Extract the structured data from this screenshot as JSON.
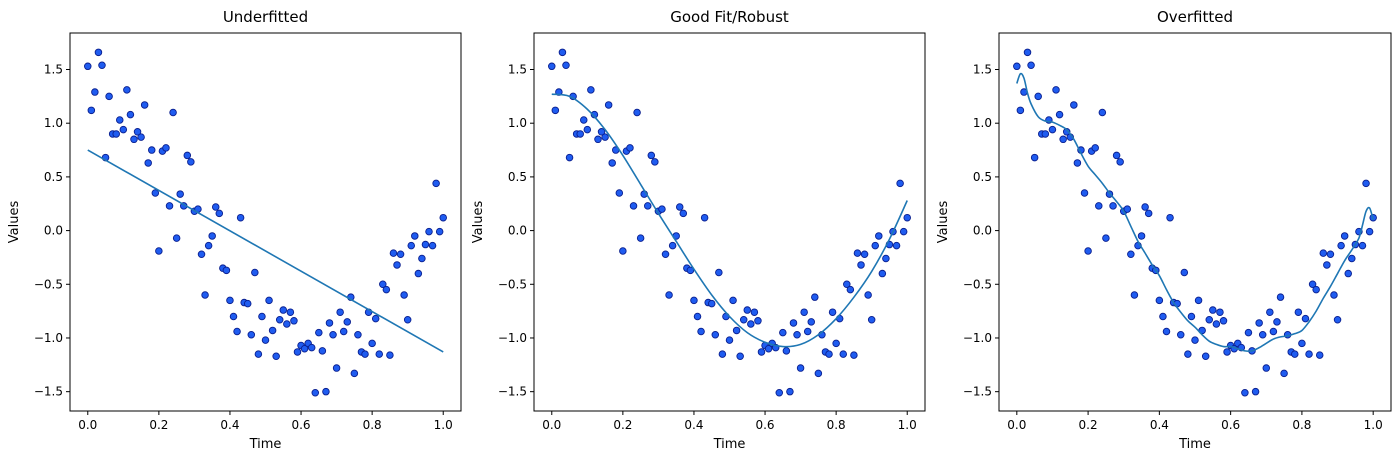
{
  "chart_data": [
    {
      "type": "scatter",
      "title": "Underfitted",
      "xlabel": "Time",
      "ylabel": "Values",
      "xlim": [
        -0.05,
        1.05
      ],
      "ylim": [
        -1.68,
        1.84
      ],
      "xticks": [
        0.0,
        0.2,
        0.4,
        0.6,
        0.8,
        1.0
      ],
      "xtick_labels": [
        "0.0",
        "0.2",
        "0.4",
        "0.6",
        "0.8",
        "1.0"
      ],
      "yticks": [
        -1.5,
        -1.0,
        -0.5,
        0.0,
        0.5,
        1.0,
        1.5
      ],
      "ytick_labels": [
        "−1.5",
        "−1.0",
        "−0.5",
        "0.0",
        "0.5",
        "1.0",
        "1.5"
      ],
      "grid": false,
      "series": [
        {
          "kind": "scatter",
          "x": [
            0.0,
            0.01,
            0.02,
            0.03,
            0.04,
            0.05,
            0.06,
            0.07,
            0.08,
            0.09,
            0.1,
            0.11,
            0.12,
            0.13,
            0.14,
            0.15,
            0.16,
            0.17,
            0.18,
            0.19,
            0.2,
            0.21,
            0.22,
            0.23,
            0.24,
            0.25,
            0.26,
            0.27,
            0.28,
            0.29,
            0.3,
            0.31,
            0.32,
            0.33,
            0.34,
            0.35,
            0.36,
            0.37,
            0.38,
            0.39,
            0.4,
            0.41,
            0.42,
            0.43,
            0.44,
            0.45,
            0.46,
            0.47,
            0.48,
            0.49,
            0.5,
            0.51,
            0.52,
            0.53,
            0.54,
            0.55,
            0.56,
            0.57,
            0.58,
            0.59,
            0.6,
            0.61,
            0.62,
            0.63,
            0.64,
            0.65,
            0.66,
            0.67,
            0.68,
            0.69,
            0.7,
            0.71,
            0.72,
            0.73,
            0.74,
            0.75,
            0.76,
            0.77,
            0.78,
            0.79,
            0.8,
            0.81,
            0.82,
            0.83,
            0.84,
            0.85,
            0.86,
            0.87,
            0.88,
            0.89,
            0.9,
            0.91,
            0.92,
            0.93,
            0.94,
            0.95,
            0.96,
            0.97,
            0.98,
            0.99,
            1.0
          ],
          "y": [
            1.53,
            1.12,
            1.29,
            1.66,
            1.54,
            0.68,
            1.25,
            0.9,
            0.9,
            1.03,
            0.94,
            1.31,
            1.08,
            0.85,
            0.92,
            0.87,
            1.17,
            0.63,
            0.75,
            0.35,
            -0.19,
            0.74,
            0.77,
            0.23,
            1.1,
            -0.07,
            0.34,
            0.23,
            0.7,
            0.64,
            0.18,
            0.2,
            -0.22,
            -0.6,
            -0.14,
            -0.05,
            0.22,
            0.16,
            -0.35,
            -0.37,
            -0.65,
            -0.8,
            -0.94,
            0.12,
            -0.67,
            -0.68,
            -0.97,
            -0.39,
            -1.15,
            -0.8,
            -1.02,
            -0.65,
            -0.93,
            -1.17,
            -0.83,
            -0.74,
            -0.87,
            -0.76,
            -0.84,
            -1.13,
            -1.07,
            -1.1,
            -1.05,
            -1.09,
            -1.51,
            -0.95,
            -1.12,
            -1.5,
            -0.86,
            -0.97,
            -1.28,
            -0.76,
            -0.94,
            -0.85,
            -0.62,
            -1.33,
            -0.97,
            -1.13,
            -1.15,
            -0.76,
            -1.05,
            -0.82,
            -1.15,
            -0.5,
            -0.55,
            -1.16,
            -0.21,
            -0.32,
            -0.22,
            -0.6,
            -0.83,
            -0.14,
            -0.05,
            -0.4,
            -0.26,
            -0.13,
            -0.01,
            -0.14,
            0.44,
            -0.01,
            0.12
          ]
        },
        {
          "kind": "line",
          "x": [
            0.0,
            1.0
          ],
          "y": [
            0.75,
            -1.13
          ]
        }
      ]
    },
    {
      "type": "scatter",
      "title": "Good Fit/Robust",
      "xlabel": "Time",
      "ylabel": "Values",
      "xlim": [
        -0.05,
        1.05
      ],
      "ylim": [
        -1.68,
        1.84
      ],
      "xticks": [
        0.0,
        0.2,
        0.4,
        0.6,
        0.8,
        1.0
      ],
      "xtick_labels": [
        "0.0",
        "0.2",
        "0.4",
        "0.6",
        "0.8",
        "1.0"
      ],
      "yticks": [
        -1.5,
        -1.0,
        -0.5,
        0.0,
        0.5,
        1.0,
        1.5
      ],
      "ytick_labels": [
        "−1.5",
        "−1.0",
        "−0.5",
        "0.0",
        "0.5",
        "1.0",
        "1.5"
      ],
      "grid": false,
      "series": [
        {
          "kind": "scatter",
          "x": [
            0.0,
            0.01,
            0.02,
            0.03,
            0.04,
            0.05,
            0.06,
            0.07,
            0.08,
            0.09,
            0.1,
            0.11,
            0.12,
            0.13,
            0.14,
            0.15,
            0.16,
            0.17,
            0.18,
            0.19,
            0.2,
            0.21,
            0.22,
            0.23,
            0.24,
            0.25,
            0.26,
            0.27,
            0.28,
            0.29,
            0.3,
            0.31,
            0.32,
            0.33,
            0.34,
            0.35,
            0.36,
            0.37,
            0.38,
            0.39,
            0.4,
            0.41,
            0.42,
            0.43,
            0.44,
            0.45,
            0.46,
            0.47,
            0.48,
            0.49,
            0.5,
            0.51,
            0.52,
            0.53,
            0.54,
            0.55,
            0.56,
            0.57,
            0.58,
            0.59,
            0.6,
            0.61,
            0.62,
            0.63,
            0.64,
            0.65,
            0.66,
            0.67,
            0.68,
            0.69,
            0.7,
            0.71,
            0.72,
            0.73,
            0.74,
            0.75,
            0.76,
            0.77,
            0.78,
            0.79,
            0.8,
            0.81,
            0.82,
            0.83,
            0.84,
            0.85,
            0.86,
            0.87,
            0.88,
            0.89,
            0.9,
            0.91,
            0.92,
            0.93,
            0.94,
            0.95,
            0.96,
            0.97,
            0.98,
            0.99,
            1.0
          ],
          "y": [
            1.53,
            1.12,
            1.29,
            1.66,
            1.54,
            0.68,
            1.25,
            0.9,
            0.9,
            1.03,
            0.94,
            1.31,
            1.08,
            0.85,
            0.92,
            0.87,
            1.17,
            0.63,
            0.75,
            0.35,
            -0.19,
            0.74,
            0.77,
            0.23,
            1.1,
            -0.07,
            0.34,
            0.23,
            0.7,
            0.64,
            0.18,
            0.2,
            -0.22,
            -0.6,
            -0.14,
            -0.05,
            0.22,
            0.16,
            -0.35,
            -0.37,
            -0.65,
            -0.8,
            -0.94,
            0.12,
            -0.67,
            -0.68,
            -0.97,
            -0.39,
            -1.15,
            -0.8,
            -1.02,
            -0.65,
            -0.93,
            -1.17,
            -0.83,
            -0.74,
            -0.87,
            -0.76,
            -0.84,
            -1.13,
            -1.07,
            -1.1,
            -1.05,
            -1.09,
            -1.51,
            -0.95,
            -1.12,
            -1.5,
            -0.86,
            -0.97,
            -1.28,
            -0.76,
            -0.94,
            -0.85,
            -0.62,
            -1.33,
            -0.97,
            -1.13,
            -1.15,
            -0.76,
            -1.05,
            -0.82,
            -1.15,
            -0.5,
            -0.55,
            -1.16,
            -0.21,
            -0.32,
            -0.22,
            -0.6,
            -0.83,
            -0.14,
            -0.05,
            -0.4,
            -0.26,
            -0.13,
            -0.01,
            -0.14,
            0.44,
            -0.01,
            0.12
          ]
        },
        {
          "kind": "line",
          "x": [
            0.0,
            0.05,
            0.1,
            0.15,
            0.2,
            0.25,
            0.3,
            0.35,
            0.4,
            0.45,
            0.5,
            0.55,
            0.6,
            0.65,
            0.7,
            0.75,
            0.8,
            0.85,
            0.9,
            0.95,
            1.0
          ],
          "y": [
            1.27,
            1.25,
            1.13,
            0.94,
            0.7,
            0.43,
            0.16,
            -0.1,
            -0.36,
            -0.6,
            -0.8,
            -0.95,
            -1.04,
            -1.08,
            -1.06,
            -0.97,
            -0.82,
            -0.62,
            -0.38,
            -0.08,
            0.28
          ]
        }
      ]
    },
    {
      "type": "scatter",
      "title": "Overfitted",
      "xlabel": "Time",
      "ylabel": "Values",
      "xlim": [
        -0.05,
        1.05
      ],
      "ylim": [
        -1.68,
        1.84
      ],
      "xticks": [
        0.0,
        0.2,
        0.4,
        0.6,
        0.8,
        1.0
      ],
      "xtick_labels": [
        "0.0",
        "0.2",
        "0.4",
        "0.6",
        "0.8",
        "1.0"
      ],
      "yticks": [
        -1.5,
        -1.0,
        -0.5,
        0.0,
        0.5,
        1.0,
        1.5
      ],
      "ytick_labels": [
        "−1.5",
        "−1.0",
        "−0.5",
        "0.0",
        "0.5",
        "1.0",
        "1.5"
      ],
      "grid": false,
      "series": [
        {
          "kind": "scatter",
          "x": [
            0.0,
            0.01,
            0.02,
            0.03,
            0.04,
            0.05,
            0.06,
            0.07,
            0.08,
            0.09,
            0.1,
            0.11,
            0.12,
            0.13,
            0.14,
            0.15,
            0.16,
            0.17,
            0.18,
            0.19,
            0.2,
            0.21,
            0.22,
            0.23,
            0.24,
            0.25,
            0.26,
            0.27,
            0.28,
            0.29,
            0.3,
            0.31,
            0.32,
            0.33,
            0.34,
            0.35,
            0.36,
            0.37,
            0.38,
            0.39,
            0.4,
            0.41,
            0.42,
            0.43,
            0.44,
            0.45,
            0.46,
            0.47,
            0.48,
            0.49,
            0.5,
            0.51,
            0.52,
            0.53,
            0.54,
            0.55,
            0.56,
            0.57,
            0.58,
            0.59,
            0.6,
            0.61,
            0.62,
            0.63,
            0.64,
            0.65,
            0.66,
            0.67,
            0.68,
            0.69,
            0.7,
            0.71,
            0.72,
            0.73,
            0.74,
            0.75,
            0.76,
            0.77,
            0.78,
            0.79,
            0.8,
            0.81,
            0.82,
            0.83,
            0.84,
            0.85,
            0.86,
            0.87,
            0.88,
            0.89,
            0.9,
            0.91,
            0.92,
            0.93,
            0.94,
            0.95,
            0.96,
            0.97,
            0.98,
            0.99,
            1.0
          ],
          "y": [
            1.53,
            1.12,
            1.29,
            1.66,
            1.54,
            0.68,
            1.25,
            0.9,
            0.9,
            1.03,
            0.94,
            1.31,
            1.08,
            0.85,
            0.92,
            0.87,
            1.17,
            0.63,
            0.75,
            0.35,
            -0.19,
            0.74,
            0.77,
            0.23,
            1.1,
            -0.07,
            0.34,
            0.23,
            0.7,
            0.64,
            0.18,
            0.2,
            -0.22,
            -0.6,
            -0.14,
            -0.05,
            0.22,
            0.16,
            -0.35,
            -0.37,
            -0.65,
            -0.8,
            -0.94,
            0.12,
            -0.67,
            -0.68,
            -0.97,
            -0.39,
            -1.15,
            -0.8,
            -1.02,
            -0.65,
            -0.93,
            -1.17,
            -0.83,
            -0.74,
            -0.87,
            -0.76,
            -0.84,
            -1.13,
            -1.07,
            -1.1,
            -1.05,
            -1.09,
            -1.51,
            -0.95,
            -1.12,
            -1.5,
            -0.86,
            -0.97,
            -1.28,
            -0.76,
            -0.94,
            -0.85,
            -0.62,
            -1.33,
            -0.97,
            -1.13,
            -1.15,
            -0.76,
            -1.05,
            -0.82,
            -1.15,
            -0.5,
            -0.55,
            -1.16,
            -0.21,
            -0.32,
            -0.22,
            -0.6,
            -0.83,
            -0.14,
            -0.05,
            -0.4,
            -0.26,
            -0.13,
            -0.01,
            -0.14,
            0.44,
            -0.01,
            0.12
          ]
        },
        {
          "kind": "line",
          "x": [
            0.0,
            0.01,
            0.02,
            0.03,
            0.04,
            0.06,
            0.08,
            0.1,
            0.12,
            0.14,
            0.16,
            0.18,
            0.2,
            0.22,
            0.24,
            0.26,
            0.28,
            0.3,
            0.32,
            0.34,
            0.36,
            0.38,
            0.4,
            0.42,
            0.44,
            0.46,
            0.48,
            0.5,
            0.52,
            0.54,
            0.56,
            0.58,
            0.6,
            0.62,
            0.64,
            0.66,
            0.68,
            0.7,
            0.72,
            0.74,
            0.76,
            0.78,
            0.8,
            0.82,
            0.84,
            0.86,
            0.88,
            0.9,
            0.92,
            0.94,
            0.96,
            0.97,
            0.98,
            0.99,
            1.0
          ],
          "y": [
            1.37,
            1.46,
            1.42,
            1.28,
            1.18,
            1.06,
            1.02,
            1.01,
            0.98,
            0.94,
            0.85,
            0.72,
            0.6,
            0.52,
            0.44,
            0.35,
            0.27,
            0.18,
            0.04,
            -0.1,
            -0.21,
            -0.32,
            -0.42,
            -0.55,
            -0.67,
            -0.76,
            -0.84,
            -0.9,
            -0.97,
            -1.03,
            -1.06,
            -1.08,
            -1.08,
            -1.1,
            -1.12,
            -1.12,
            -1.09,
            -1.05,
            -1.01,
            -0.99,
            -0.98,
            -0.96,
            -0.93,
            -0.85,
            -0.75,
            -0.63,
            -0.52,
            -0.4,
            -0.28,
            -0.18,
            -0.07,
            0.05,
            0.18,
            0.21,
            0.1
          ]
        }
      ]
    }
  ],
  "colors": {
    "line": "#1f77b4",
    "marker_fill": "#1f5cf0",
    "marker_edge": "#0a1f8f",
    "axes": "#000000",
    "background": "#ffffff"
  }
}
